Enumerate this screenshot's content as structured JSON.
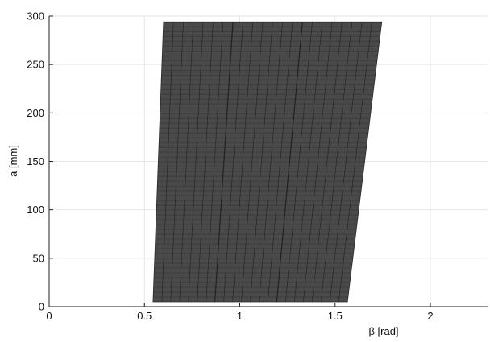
{
  "chart_data": {
    "type": "area",
    "title": "",
    "xlabel": "β [rad]",
    "ylabel": "a [mm]",
    "xlim": [
      0,
      2.3
    ],
    "ylim": [
      0,
      300
    ],
    "x_ticks": [
      0,
      0.5,
      1,
      1.5,
      2
    ],
    "x_tick_labels": [
      "0",
      "0.5",
      "1",
      "1.5",
      "2"
    ],
    "y_ticks": [
      0,
      50,
      100,
      150,
      200,
      250,
      300
    ],
    "y_tick_labels": [
      "0",
      "50",
      "100",
      "150",
      "200",
      "250",
      "300"
    ],
    "grid": true,
    "region": {
      "description_points": [
        {
          "beta": 0.545,
          "a": 5
        },
        {
          "beta": 1.565,
          "a": 5
        },
        {
          "beta": 1.745,
          "a": 294
        },
        {
          "beta": 0.6,
          "a": 294
        }
      ],
      "fill_color": "#4a4a4a",
      "mesh_line_color": "#1a1a1a"
    }
  }
}
